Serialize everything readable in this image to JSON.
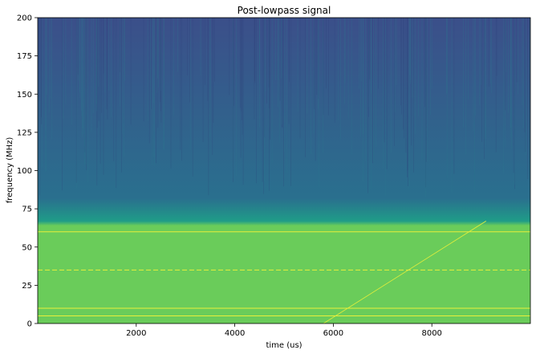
{
  "chart_data": {
    "type": "heatmap",
    "title": "Post-lowpass signal",
    "xlabel": "time (us)",
    "ylabel": "frequency (MHz)",
    "xlim": [
      0,
      10000
    ],
    "ylim": [
      0,
      200
    ],
    "xticks": [
      2000,
      4000,
      6000,
      8000
    ],
    "yticks": [
      0,
      25,
      50,
      75,
      100,
      125,
      150,
      175,
      200
    ],
    "xtick_labels": [
      "2000",
      "4000",
      "6000",
      "8000"
    ],
    "ytick_labels": [
      "0",
      "25",
      "50",
      "75",
      "100",
      "125",
      "150",
      "175",
      "200"
    ],
    "grid": false,
    "colormap": "viridis",
    "colors": {
      "passband": "#6acc5a",
      "transition": "#1f9c88",
      "stopband_low": "#2a6f8e",
      "stopband_high": "#3b4f8a",
      "tone": "#e8ef3a"
    },
    "regions": [
      {
        "name": "passband",
        "y_from": 0,
        "y_to": 67
      },
      {
        "name": "transition",
        "y_from": 64,
        "y_to": 82
      },
      {
        "name": "stopband",
        "y_from": 67,
        "y_to": 200
      }
    ],
    "tones": [
      {
        "frequency": 5,
        "style": "solid"
      },
      {
        "frequency": 10,
        "style": "solid"
      },
      {
        "frequency": 35,
        "style": "dashed"
      },
      {
        "frequency": 60,
        "style": "solid"
      }
    ],
    "chirp": {
      "start": [
        5800,
        0
      ],
      "end": [
        9100,
        67
      ]
    }
  }
}
